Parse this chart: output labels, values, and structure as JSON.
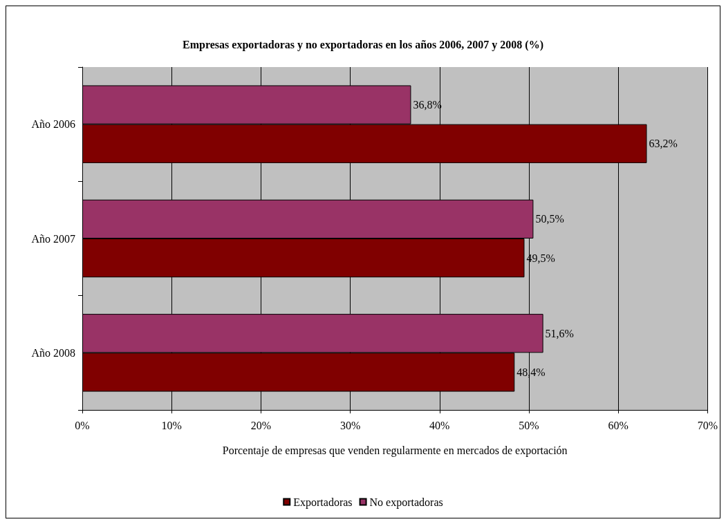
{
  "chart_data": {
    "type": "bar",
    "orientation": "horizontal",
    "title": "Empresas exportadoras y no exportadoras en los años 2006, 2007 y 2008 (%)",
    "xlabel": "Porcentaje de empresas que venden regularmente en mercados de exportación",
    "categories": [
      "Año 2006",
      "Año 2007",
      "Año 2008"
    ],
    "series": [
      {
        "name": "Exportadoras",
        "color": "#800000",
        "values": [
          63.2,
          49.5,
          48.4
        ],
        "value_labels": [
          "63,2%",
          "49,5%",
          "48,4%"
        ]
      },
      {
        "name": "No exportadoras",
        "color": "#993366",
        "values": [
          36.8,
          50.5,
          51.6
        ],
        "value_labels": [
          "36,8%",
          "50,5%",
          "51,6%"
        ]
      }
    ],
    "xlim": [
      0,
      70
    ],
    "xticks": [
      {
        "value": 0,
        "label": "0%"
      },
      {
        "value": 10,
        "label": "10%"
      },
      {
        "value": 20,
        "label": "20%"
      },
      {
        "value": 30,
        "label": "30%"
      },
      {
        "value": 40,
        "label": "40%"
      },
      {
        "value": 50,
        "label": "50%"
      },
      {
        "value": 60,
        "label": "60%"
      },
      {
        "value": 70,
        "label": "70%"
      }
    ],
    "grid": "x",
    "legend": "bottom"
  }
}
